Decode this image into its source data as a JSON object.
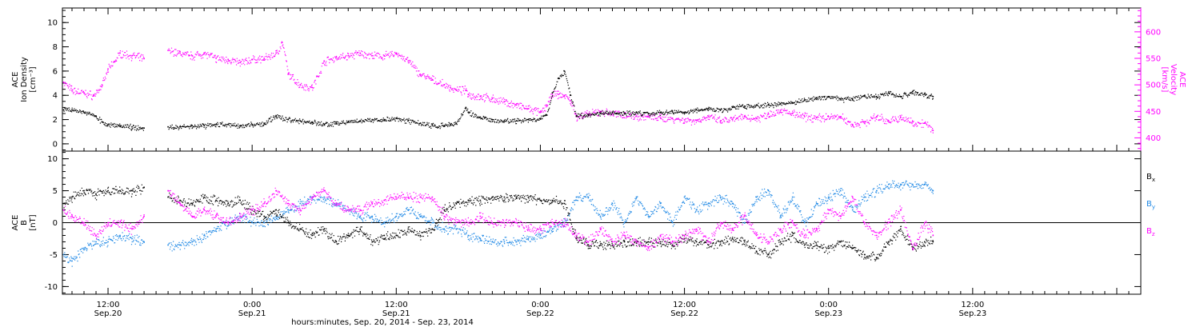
{
  "xaxis": {
    "title": "hours:minutes, Sep. 20, 2014 - Sep. 23, 2014",
    "range_hours": [
      8.2,
      98.0
    ],
    "major_ticks": [
      {
        "hours": 12,
        "time": "12:00",
        "date": "Sep.20"
      },
      {
        "hours": 24,
        "time": "0:00",
        "date": "Sep.21"
      },
      {
        "hours": 36,
        "time": "12:00",
        "date": "Sep.21"
      },
      {
        "hours": 48,
        "time": "0:00",
        "date": "Sep.22"
      },
      {
        "hours": 60,
        "time": "12:00",
        "date": "Sep.22"
      },
      {
        "hours": 72,
        "time": "0:00",
        "date": "Sep.23"
      },
      {
        "hours": 84,
        "time": "12:00",
        "date": "Sep.23"
      }
    ]
  },
  "colors": {
    "density": "#000000",
    "velocity": "#ff00ff",
    "bx": "#000000",
    "by": "#1e88e5",
    "bz": "#ff00ff"
  },
  "chart_data": [
    {
      "type": "scatter",
      "title": "",
      "ylabel": [
        "ACE",
        "Ion Density",
        "[cm⁻³]"
      ],
      "ylim": [
        -0.6,
        11.2
      ],
      "yticks": [
        0,
        2,
        4,
        6,
        8,
        10
      ],
      "y2label": [
        "ACE",
        "Velocity",
        "[km/s]"
      ],
      "y2lim": [
        375,
        645
      ],
      "y2ticks": [
        400,
        450,
        500,
        550,
        600
      ],
      "series": [
        {
          "key": "density",
          "axis": "left",
          "x": [
            8.3,
            9,
            10,
            11,
            11.5,
            12,
            13,
            14,
            15,
            16,
            17,
            18,
            19,
            20,
            21,
            22,
            23,
            24,
            25,
            26,
            27,
            28,
            29,
            30,
            31,
            32,
            33,
            34,
            35,
            36,
            37,
            38,
            39,
            40,
            40.5,
            41,
            41.8,
            42,
            43,
            44,
            45,
            46,
            47,
            48,
            48.5,
            49,
            49.5,
            50,
            50.5,
            51,
            52,
            53,
            54,
            55,
            56,
            57,
            58,
            59,
            60,
            61,
            62,
            63,
            64,
            65,
            66,
            67,
            68,
            69,
            70,
            71,
            72,
            73,
            74,
            75,
            76,
            77,
            78,
            79,
            80,
            80.7
          ],
          "y": [
            2.8,
            2.8,
            2.6,
            2.3,
            1.8,
            1.6,
            1.5,
            1.4,
            1.3,
            null,
            1.4,
            1.4,
            1.5,
            1.5,
            1.6,
            1.6,
            1.5,
            1.6,
            1.7,
            2.3,
            2.0,
            1.9,
            1.8,
            1.6,
            1.7,
            1.8,
            1.9,
            2.0,
            2.0,
            2.1,
            1.9,
            1.7,
            1.5,
            1.5,
            1.6,
            1.7,
            3.0,
            2.6,
            2.2,
            2.0,
            1.9,
            1.9,
            2.0,
            2.1,
            2.4,
            4.2,
            5.4,
            6.0,
            4.0,
            2.3,
            2.4,
            2.5,
            2.6,
            2.5,
            2.6,
            2.5,
            2.6,
            2.7,
            2.6,
            2.8,
            2.9,
            2.8,
            3.0,
            3.1,
            3.2,
            3.2,
            3.3,
            3.4,
            3.6,
            3.8,
            3.9,
            3.7,
            3.7,
            4.0,
            3.9,
            4.2,
            3.9,
            4.3,
            4.1,
            3.9
          ]
        },
        {
          "key": "velocity",
          "axis": "right",
          "x": [
            8.3,
            9,
            10,
            10.8,
            11.5,
            12,
            13,
            14,
            15,
            16,
            17,
            18,
            19,
            20,
            21,
            22,
            23,
            24,
            25,
            26,
            26.5,
            27,
            28,
            29,
            30,
            31,
            32,
            33,
            34,
            35,
            36,
            37,
            38,
            39,
            40,
            40.5,
            41,
            41.8,
            42,
            43,
            44,
            45,
            46,
            47,
            48,
            48.5,
            49,
            49.5,
            50,
            50.5,
            51,
            52,
            53,
            54,
            55,
            56,
            57,
            58,
            59,
            60,
            61,
            62,
            63,
            64,
            65,
            66,
            67,
            68,
            69,
            70,
            71,
            72,
            73,
            74,
            75,
            76,
            77,
            78,
            79,
            80,
            80.7
          ],
          "y": [
            505,
            490,
            485,
            480,
            500,
            530,
            560,
            555,
            550,
            null,
            565,
            560,
            555,
            560,
            550,
            548,
            542,
            548,
            550,
            560,
            580,
            520,
            500,
            495,
            545,
            552,
            555,
            560,
            555,
            555,
            560,
            545,
            520,
            510,
            500,
            495,
            490,
            490,
            482,
            478,
            474,
            468,
            462,
            455,
            448,
            462,
            482,
            482,
            480,
            470,
            440,
            445,
            450,
            446,
            445,
            441,
            440,
            438,
            437,
            434,
            433,
            440,
            432,
            435,
            440,
            437,
            445,
            452,
            446,
            440,
            438,
            440,
            440,
            425,
            430,
            440,
            432,
            438,
            430,
            428,
            414
          ]
        }
      ]
    },
    {
      "type": "scatter",
      "title": "",
      "ylabel": [
        "ACE",
        "B",
        "[nT]"
      ],
      "ylim": [
        -11.2,
        11.2
      ],
      "yticks": [
        -10,
        -5,
        0,
        5,
        10
      ],
      "legend": [
        "Bx",
        "By",
        "Bz"
      ],
      "legend_position": "right",
      "series": [
        {
          "key": "bx",
          "name": "Bx",
          "x": [
            8.3,
            9,
            10,
            11,
            12,
            13,
            14,
            15,
            16,
            17,
            18,
            19,
            20,
            21,
            22,
            23,
            24,
            25,
            26,
            27,
            28,
            29,
            30,
            31,
            32,
            33,
            34,
            35,
            36,
            37,
            38,
            39,
            40,
            41,
            42,
            43,
            44,
            45,
            46,
            47,
            48,
            49,
            50,
            51,
            52,
            53,
            54,
            55,
            56,
            57,
            58,
            59,
            60,
            61,
            62,
            63,
            64,
            65,
            66,
            67,
            68,
            69,
            70,
            71,
            72,
            73,
            74,
            75,
            76,
            77,
            78,
            79,
            80,
            80.7
          ],
          "y": [
            3,
            4,
            5,
            4.5,
            5,
            5,
            5,
            5.5,
            null,
            4,
            3.5,
            3,
            4,
            3.5,
            3,
            3.5,
            2,
            1,
            2,
            0,
            -1,
            -2,
            -1,
            -3,
            -2,
            -1,
            -3,
            -2,
            -2,
            -1,
            -2,
            -1,
            2,
            3,
            3.5,
            3.5,
            4,
            4,
            4,
            4,
            3.5,
            3.5,
            3,
            -2.5,
            -3.5,
            -3.5,
            -3.5,
            -3,
            -3.2,
            -3,
            -3,
            -3.5,
            -2.5,
            -3,
            -3.5,
            -3,
            -2.5,
            -3,
            -4.5,
            -5,
            -3,
            -2,
            -3.5,
            -3.5,
            -4,
            -3,
            -4,
            -5,
            -5.5,
            -3,
            -1,
            -4,
            -3,
            -3
          ]
        },
        {
          "key": "by",
          "name": "By",
          "x": [
            8.3,
            9,
            10,
            11,
            12,
            13,
            14,
            15,
            16,
            17,
            18,
            19,
            20,
            21,
            22,
            23,
            24,
            25,
            26,
            27,
            28,
            29,
            30,
            31,
            32,
            33,
            34,
            35,
            36,
            37,
            38,
            39,
            40,
            41,
            42,
            43,
            44,
            45,
            46,
            47,
            48,
            49,
            50,
            51,
            52,
            53,
            54,
            55,
            56,
            57,
            58,
            59,
            60,
            61,
            62,
            63,
            64,
            65,
            66,
            67,
            68,
            69,
            70,
            71,
            72,
            73,
            74,
            75,
            76,
            77,
            78,
            79,
            80,
            80.7
          ],
          "y": [
            -5,
            -6,
            -4,
            -3,
            -3,
            -2,
            -2.5,
            -3,
            null,
            -3.5,
            -3.5,
            -3,
            -2,
            -1,
            0,
            1,
            0,
            0,
            1,
            2,
            3,
            4,
            4,
            3,
            2,
            1,
            1,
            0,
            1,
            2,
            1,
            0,
            -1,
            -1,
            -2,
            -2.5,
            -3,
            -3,
            -3,
            -2.5,
            -2,
            -1,
            0,
            4,
            4,
            1,
            3,
            0,
            4,
            1,
            3,
            0,
            4,
            2,
            3,
            4,
            3,
            0,
            4,
            5,
            1,
            4,
            0,
            3,
            4,
            5,
            2,
            4,
            5,
            6,
            6,
            6,
            6,
            5
          ]
        },
        {
          "key": "bz",
          "name": "Bz",
          "x": [
            8.3,
            9,
            10,
            11,
            12,
            13,
            14,
            15,
            16,
            17,
            18,
            19,
            20,
            21,
            22,
            23,
            24,
            25,
            26,
            27,
            28,
            29,
            30,
            31,
            32,
            33,
            34,
            35,
            36,
            37,
            38,
            39,
            40,
            41,
            42,
            43,
            44,
            45,
            46,
            47,
            48,
            49,
            50,
            51,
            52,
            53,
            54,
            55,
            56,
            57,
            58,
            59,
            60,
            61,
            62,
            63,
            64,
            65,
            66,
            67,
            68,
            69,
            70,
            71,
            72,
            73,
            74,
            75,
            76,
            77,
            78,
            79,
            80,
            80.7
          ],
          "y": [
            2,
            1,
            0,
            -2,
            0,
            0,
            -1,
            1,
            null,
            5,
            3,
            1,
            2,
            1,
            0,
            1,
            2,
            3,
            5,
            3,
            2,
            4,
            5,
            3,
            2,
            2,
            3,
            3.5,
            4,
            4,
            4,
            4,
            1,
            0,
            0,
            1,
            0,
            0,
            0,
            -1,
            -1,
            0,
            0,
            -2,
            -3,
            -1,
            -3,
            -2,
            -3,
            -4,
            -2,
            -3,
            -2,
            -1,
            -3,
            0,
            -1,
            1,
            -2,
            -3,
            -1,
            0,
            -2,
            -1,
            2,
            1,
            4,
            0,
            -2,
            0,
            2,
            -4,
            0,
            -2
          ]
        }
      ]
    }
  ]
}
